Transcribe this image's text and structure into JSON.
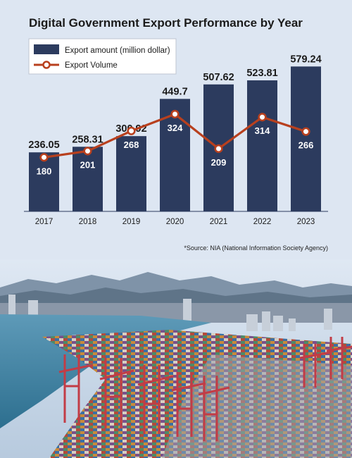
{
  "colors": {
    "background": "#dde6f2",
    "bar": "#2c3b5e",
    "line": "#b8401e",
    "marker_fill": "#ffffff",
    "text_dark": "#1b1b1b"
  },
  "chart_data": {
    "type": "bar",
    "title": "Digital Government Export Performance by Year",
    "categories": [
      "2017",
      "2018",
      "2019",
      "2020",
      "2021",
      "2022",
      "2023"
    ],
    "series": [
      {
        "name": "Export amount (million dollar)",
        "type": "bar",
        "values": [
          236.05,
          258.31,
          300.92,
          449.7,
          507.62,
          523.81,
          579.24
        ],
        "labels": [
          "236.05",
          "258.31",
          "300.92",
          "449.7",
          "507.62",
          "523.81",
          "579.24"
        ]
      },
      {
        "name": "Export Volume",
        "type": "line",
        "values": [
          180,
          201,
          268,
          324,
          209,
          314,
          266
        ],
        "labels": [
          "180",
          "201",
          "268",
          "324",
          "209",
          "314",
          "266"
        ]
      }
    ],
    "bar_ylim": [
      0,
      600
    ],
    "line_ylim": [
      0,
      500
    ],
    "legend_position": "top-left",
    "grid": false,
    "source": "*Source: NIA (National Information Society Agency)"
  },
  "photo": {
    "icons": [
      "harbor-photo-icon"
    ]
  }
}
